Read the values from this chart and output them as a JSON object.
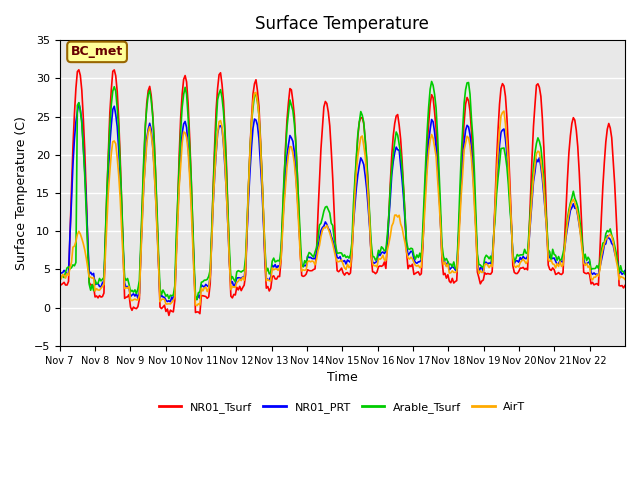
{
  "title": "Surface Temperature",
  "ylabel": "Surface Temperature (C)",
  "xlabel": "Time",
  "ylim": [
    -5,
    35
  ],
  "annotation": "BC_met",
  "background_color": "#e8e8e8",
  "grid_color": "white",
  "colors": {
    "NR01_Tsurf": "#ff0000",
    "NR01_PRT": "#0000ff",
    "Arable_Tsurf": "#00cc00",
    "AirT": "#ffaa00"
  },
  "xtick_labels": [
    "Nov 7",
    "Nov 8",
    "Nov 9",
    "Nov 10",
    "Nov 11",
    "Nov 12",
    "Nov 13",
    "Nov 14",
    "Nov 15",
    "Nov 16",
    "Nov 17",
    "Nov 18",
    "Nov 19",
    "Nov 20",
    "Nov 21",
    "Nov 22"
  ],
  "daily_peaks": [
    31.5,
    31.5,
    29.0,
    30.5,
    30.8,
    29.8,
    28.5,
    27.0,
    25.2,
    25.3,
    27.5,
    27.5,
    29.5,
    29.5,
    25.0,
    23.8
  ],
  "daily_troughs": [
    3.0,
    1.5,
    0.0,
    -0.5,
    1.5,
    2.5,
    4.0,
    5.0,
    4.5,
    5.5,
    4.5,
    3.5,
    4.5,
    5.0,
    4.5,
    3.0
  ],
  "arable_peaks": [
    6.5,
    29.0,
    28.5,
    28.5,
    28.5,
    28.0,
    27.0,
    13.2,
    25.5,
    22.5,
    29.5,
    29.5,
    21.0,
    22.0,
    14.5,
    10.0
  ],
  "nrprt_peaks": [
    26.5,
    26.0,
    24.0,
    24.5,
    24.0,
    24.8,
    22.5,
    11.0,
    19.5,
    21.0,
    24.5,
    24.0,
    23.5,
    19.5,
    13.5,
    9.0
  ],
  "airt_peaks": [
    9.5,
    22.0,
    23.5,
    23.0,
    24.5,
    28.5,
    21.0,
    10.5,
    22.5,
    12.0,
    22.5,
    22.5,
    25.5,
    20.5,
    14.0,
    9.5
  ]
}
